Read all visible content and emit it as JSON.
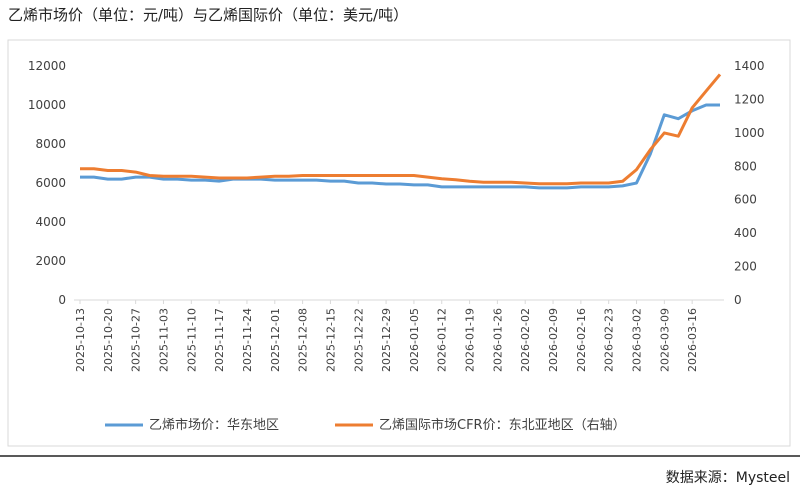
{
  "chart_data": {
    "type": "line",
    "title": "乙烯市场价（单位：元/吨）与乙烯国际价（单位：美元/吨）",
    "source": "数据来源：Mysteel",
    "categories": [
      "2025-10-13",
      null,
      "2025-10-20",
      null,
      "2025-10-27",
      null,
      "2025-11-03",
      null,
      "2025-11-10",
      null,
      "2025-11-17",
      null,
      "2025-11-24",
      null,
      "2025-12-01",
      null,
      "2025-12-08",
      null,
      "2025-12-15",
      null,
      "2025-12-22",
      null,
      "2025-12-29",
      null,
      "2026-01-05",
      null,
      "2026-01-12",
      null,
      "2026-01-19",
      null,
      "2026-01-26",
      null,
      "2026-02-02",
      null,
      "2026-02-09",
      null,
      "2026-02-16",
      null,
      "2026-02-23",
      null,
      "2026-03-02",
      null,
      "2026-03-09",
      null,
      "2026-03-16",
      null,
      null
    ],
    "series": [
      {
        "name": "乙烯市场价：华东地区",
        "color": "#5b9bd5",
        "axis": "y",
        "values": [
          6300,
          6300,
          6200,
          6200,
          6300,
          6300,
          6200,
          6200,
          6150,
          6150,
          6100,
          6200,
          6200,
          6200,
          6150,
          6150,
          6150,
          6150,
          6100,
          6100,
          6000,
          6000,
          5950,
          5950,
          5900,
          5900,
          5800,
          5800,
          5800,
          5800,
          5800,
          5800,
          5800,
          5750,
          5750,
          5750,
          5800,
          5800,
          5800,
          5850,
          6000,
          7500,
          9500,
          9300,
          9700,
          10000,
          10000
        ]
      },
      {
        "name": "乙烯国际市场CFR价：东北亚地区（右轴）",
        "color": "#ed7d31",
        "axis": "y2",
        "values": [
          785,
          785,
          775,
          775,
          765,
          745,
          740,
          740,
          740,
          735,
          730,
          730,
          730,
          735,
          740,
          740,
          745,
          745,
          745,
          745,
          745,
          745,
          745,
          745,
          745,
          735,
          725,
          720,
          710,
          705,
          705,
          705,
          700,
          695,
          695,
          695,
          700,
          700,
          700,
          710,
          780,
          900,
          1000,
          980,
          1150,
          1250,
          1350
        ]
      }
    ],
    "ylim": [
      0,
      12000
    ],
    "yticks": [
      0,
      2000,
      4000,
      6000,
      8000,
      10000,
      12000
    ],
    "y2lim": [
      0,
      1400
    ],
    "y2ticks": [
      0,
      200,
      400,
      600,
      800,
      1000,
      1200,
      1400
    ],
    "grid": false
  }
}
